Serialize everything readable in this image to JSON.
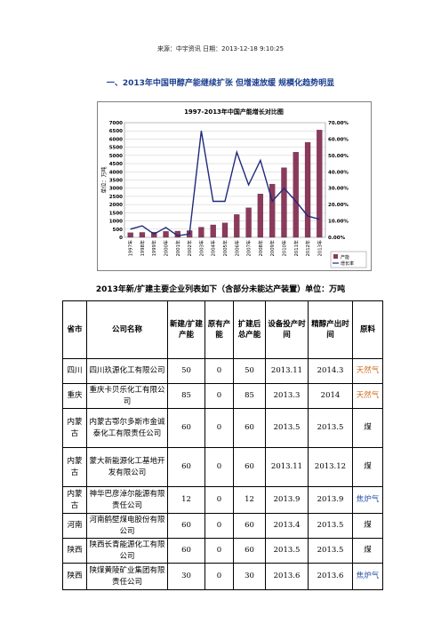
{
  "source_line": "来源：中宇资讯 日期：2013-12-18 9:10:25",
  "heading": "一、2013年中国甲醇产能继续扩张 但增速放缓 规模化趋势明显",
  "chart_data": {
    "type": "bar",
    "title": "1997-2013年中国产能增长对比图",
    "ylabel": "单位：万吨",
    "categories": [
      "1997年",
      "1998年",
      "1999年",
      "2000年",
      "2001年",
      "2002年",
      "2003年",
      "2004年",
      "2005年",
      "2006年",
      "2007年",
      "2008年",
      "2009年",
      "2010年",
      "2011年",
      "2012年",
      "2013年"
    ],
    "series": [
      {
        "name": "产能",
        "kind": "bar",
        "axis": "left",
        "color": "#8b3a5c",
        "values": [
          280,
          300,
          320,
          360,
          380,
          410,
          620,
          760,
          880,
          1390,
          1800,
          2650,
          3250,
          4250,
          5200,
          5800,
          6550
        ]
      },
      {
        "name": "增长率",
        "kind": "line",
        "axis": "right",
        "color": "#1f2a7a",
        "values": [
          0.05,
          0.07,
          0.02,
          0.06,
          0.01,
          0.02,
          0.65,
          0.22,
          0.22,
          0.52,
          0.32,
          0.47,
          0.22,
          0.3,
          0.22,
          0.13,
          0.11
        ]
      }
    ],
    "ylim": [
      0,
      7000
    ],
    "yticks": [
      0,
      500,
      1000,
      1500,
      2000,
      2500,
      3000,
      3500,
      4000,
      4500,
      5000,
      5500,
      6000,
      6500,
      7000
    ],
    "y2lim": [
      0,
      0.7
    ],
    "y2ticks": [
      0,
      0.1,
      0.2,
      0.3,
      0.4,
      0.5,
      0.6,
      0.7
    ],
    "y2tick_labels": [
      "0.00%",
      "10.00%",
      "20.00%",
      "30.00%",
      "40.00%",
      "50.00%",
      "60.00%",
      "70.00%"
    ],
    "grid": true,
    "legend": "right"
  },
  "table_title": "2013年新/扩建主要企业列表如下（含部分未能达产装置）单位：万吨",
  "table": {
    "headers": [
      "省市",
      "公司名称",
      "新建/扩建产能",
      "原有产能",
      "扩建后总产能",
      "设备投产时间",
      "精醇产出时间",
      "原料"
    ],
    "rows": [
      [
        "四川",
        "四川玖源化工有限公司",
        "50",
        "0",
        "50",
        "2013.11",
        "2014.3",
        "天然气"
      ],
      [
        "重庆",
        "重庆卡贝乐化工有限公司",
        "85",
        "0",
        "85",
        "2013.3",
        "2014",
        "天然气"
      ],
      [
        "内蒙古",
        "内蒙古鄂尔多斯市金诚泰化工有限责任公司",
        "60",
        "0",
        "60",
        "2013.5",
        "2013.5",
        "煤"
      ],
      [
        "内蒙古",
        "蒙大新能源化工基地开发有限公司",
        "60",
        "0",
        "60",
        "2013.11",
        "2013.12",
        "煤"
      ],
      [
        "内蒙古",
        "神华巴彦淖尔能源有限责任公司",
        "12",
        "0",
        "12",
        "2013.9",
        "2013.9",
        "焦炉气"
      ],
      [
        "河南",
        "河南鹤壁煤电股份有限公司",
        "60",
        "0",
        "60",
        "2013.4",
        "2013.5",
        "煤"
      ],
      [
        "陕西",
        "陕西长青能源化工有限公司",
        "60",
        "0",
        "60",
        "2013.5",
        "2013.5",
        "煤"
      ],
      [
        "陕西",
        "陕煤黄陵矿业集团有限责任公司",
        "30",
        "0",
        "30",
        "2013.6",
        "2013.6",
        "焦炉气"
      ]
    ]
  }
}
